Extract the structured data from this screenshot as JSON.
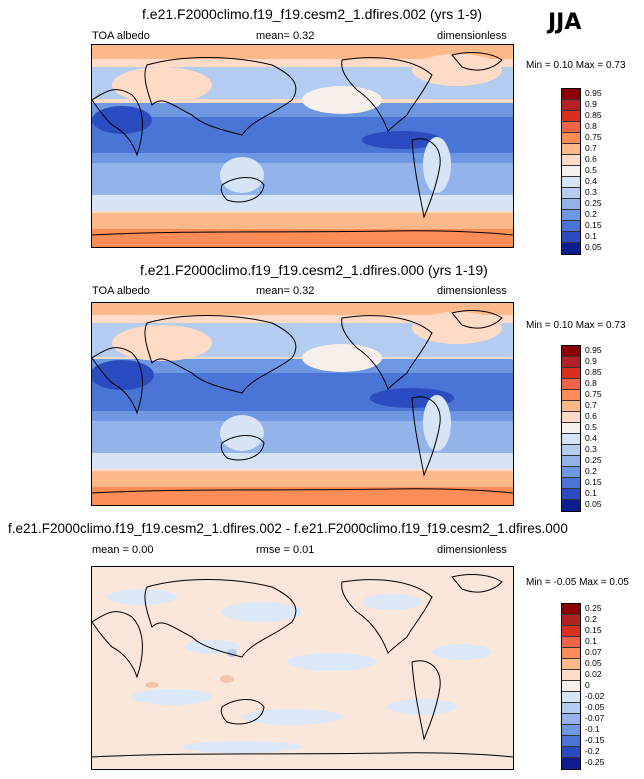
{
  "season": "JJA",
  "panels": [
    {
      "title": "f.e21.F2000climo.f19_f19.cesm2_1.dfires.002 (yrs 1-9)",
      "left_label": "TOA albedo",
      "mid_label": "mean=  0.32",
      "right_label": "dimensionless",
      "minmax": "Min =  0.10 Max =  0.73",
      "levels": [
        "0.95",
        "0.9",
        "0.85",
        "0.8",
        "0.75",
        "0.7",
        "0.6",
        "0.5",
        "0.4",
        "0.3",
        "0.25",
        "0.2",
        "0.15",
        "0.1",
        "0.05"
      ],
      "colors": [
        "#8b0000",
        "#b22222",
        "#d7301f",
        "#ef6548",
        "#fc8d59",
        "#fdb98a",
        "#fddbc7",
        "#f7f0ea",
        "#d6e4f5",
        "#b3ccef",
        "#92b4ea",
        "#6f98e2",
        "#4a74d6",
        "#2a4cc0",
        "#0b1d8f"
      ]
    },
    {
      "title": "f.e21.F2000climo.f19_f19.cesm2_1.dfires.000 (yrs 1-19)",
      "left_label": "TOA albedo",
      "mid_label": "mean=  0.32",
      "right_label": "dimensionless",
      "minmax": "Min =  0.10 Max =  0.73",
      "levels": [
        "0.95",
        "0.9",
        "0.85",
        "0.8",
        "0.75",
        "0.7",
        "0.6",
        "0.5",
        "0.4",
        "0.3",
        "0.25",
        "0.2",
        "0.15",
        "0.1",
        "0.05"
      ],
      "colors": [
        "#8b0000",
        "#b22222",
        "#d7301f",
        "#ef6548",
        "#fc8d59",
        "#fdb98a",
        "#fddbc7",
        "#f7f0ea",
        "#d6e4f5",
        "#b3ccef",
        "#92b4ea",
        "#6f98e2",
        "#4a74d6",
        "#2a4cc0",
        "#0b1d8f"
      ]
    },
    {
      "title": "f.e21.F2000climo.f19_f19.cesm2_1.dfires.002 - f.e21.F2000climo.f19_f19.cesm2_1.dfires.000",
      "left_label": "mean =  0.00",
      "mid_label": "rmse =  0.01",
      "right_label": "dimensionless",
      "minmax": "Min =  -0.05 Max =  0.05",
      "levels": [
        "0.25",
        "0.2",
        "0.15",
        "0.1",
        "0.07",
        "0.05",
        "0.02",
        "0",
        "-0.02",
        "-0.05",
        "-0.07",
        "-0.1",
        "-0.15",
        "-0.2",
        "-0.25"
      ],
      "colors": [
        "#8b0000",
        "#b22222",
        "#d7301f",
        "#ef6548",
        "#fc8d59",
        "#fdb98a",
        "#fddbc7",
        "#f7f0ea",
        "#d6e4f5",
        "#b3ccef",
        "#92b4ea",
        "#6f98e2",
        "#4a74d6",
        "#2a4cc0",
        "#0b1d8f"
      ]
    }
  ]
}
